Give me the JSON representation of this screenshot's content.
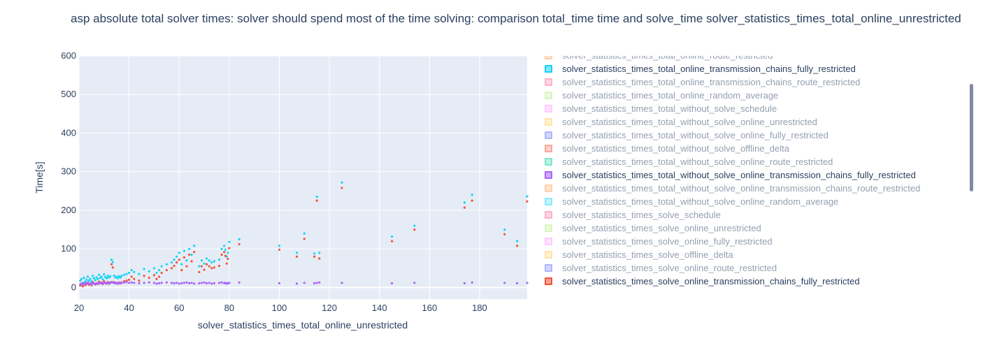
{
  "title": "asp absolute total solver times:  solver should spend most of the time solving: comparison total_time time and solve_time  solver_statistics_times_total_online_unrestricted",
  "chart_data": {
    "type": "scatter",
    "xlabel": "solver_statistics_times_total_online_unrestricted",
    "ylabel": "Time[s]",
    "xlim": [
      20,
      199
    ],
    "ylim": [
      -30,
      600
    ],
    "xticks": [
      20,
      40,
      60,
      80,
      100,
      120,
      140,
      160,
      180
    ],
    "yticks": [
      0,
      100,
      200,
      300,
      400,
      500,
      600
    ],
    "grid": true,
    "legend_placement": "right",
    "series": [
      {
        "name": "solver_statistics_times_total_online_transmission_chains_fully_restricted",
        "color": "#19d3f3",
        "x": [
          20.5,
          21,
          21.5,
          22,
          22.5,
          23,
          23.5,
          24,
          24.5,
          25,
          25.5,
          26,
          26.5,
          27,
          27.5,
          28,
          28.5,
          29,
          29.5,
          30,
          30.5,
          31,
          31.5,
          32,
          32.5,
          33,
          33.5,
          34,
          34.5,
          35,
          35.5,
          36,
          36.5,
          37,
          38,
          39,
          40,
          41,
          42,
          44,
          46,
          48,
          50,
          51,
          52,
          53,
          55,
          57,
          58,
          59,
          60,
          61,
          62,
          63,
          64,
          65,
          66,
          68,
          69,
          70,
          71,
          72,
          73,
          74,
          76,
          77,
          78,
          78.5,
          79,
          79.5,
          80,
          84,
          100,
          107,
          110,
          114,
          115,
          116,
          125,
          145,
          154,
          174,
          177,
          190,
          195,
          199
        ],
        "y": [
          18,
          22,
          12,
          25,
          15,
          20,
          28,
          18,
          22,
          16,
          30,
          24,
          19,
          26,
          22,
          33,
          25,
          28,
          21,
          34,
          27,
          24,
          30,
          26,
          29,
          72,
          66,
          31,
          26,
          28,
          24,
          29,
          26,
          30,
          33,
          35,
          38,
          45,
          40,
          35,
          48,
          42,
          50,
          38,
          45,
          55,
          60,
          65,
          72,
          80,
          90,
          60,
          95,
          70,
          100,
          85,
          108,
          55,
          70,
          62,
          75,
          70,
          65,
          68,
          72,
          100,
          108,
          98,
          80,
          90,
          118,
          125,
          108,
          90,
          140,
          88,
          235,
          90,
          272,
          132,
          160,
          220,
          240,
          150,
          120,
          236
        ]
      },
      {
        "name": "solver_statistics_times_solve_online_transmission_chains_fully_restricted",
        "color": "#ef553b",
        "x": [
          20.5,
          21,
          21.5,
          22,
          22.5,
          23,
          23.5,
          24,
          24.5,
          25,
          25.5,
          26,
          26.5,
          27,
          27.5,
          28,
          28.5,
          29,
          29.5,
          30,
          30.5,
          31,
          31.5,
          32,
          32.5,
          33,
          33.5,
          34,
          34.5,
          35,
          35.5,
          36,
          36.5,
          37,
          38,
          39,
          40,
          41,
          42,
          44,
          46,
          48,
          50,
          51,
          52,
          53,
          55,
          57,
          58,
          59,
          60,
          61,
          62,
          63,
          64,
          65,
          66,
          68,
          69,
          70,
          71,
          72,
          73,
          74,
          76,
          77,
          78,
          78.5,
          79,
          79.5,
          80,
          84,
          100,
          107,
          110,
          114,
          115,
          116,
          125,
          145,
          154,
          174,
          177,
          190,
          195,
          199
        ],
        "y": [
          5,
          8,
          3,
          10,
          6,
          9,
          12,
          7,
          10,
          6,
          14,
          10,
          8,
          11,
          9,
          15,
          11,
          13,
          9,
          16,
          12,
          10,
          14,
          11,
          13,
          60,
          52,
          14,
          11,
          12,
          10,
          13,
          11,
          13,
          16,
          18,
          20,
          28,
          22,
          18,
          30,
          25,
          32,
          22,
          28,
          38,
          45,
          50,
          56,
          65,
          72,
          45,
          78,
          55,
          85,
          68,
          92,
          40,
          55,
          46,
          60,
          55,
          50,
          52,
          56,
          85,
          92,
          82,
          62,
          74,
          102,
          112,
          98,
          80,
          126,
          80,
          225,
          75,
          258,
          120,
          150,
          207,
          225,
          138,
          108,
          223
        ]
      },
      {
        "name": "solver_statistics_times_total_without_solve_online_transmission_chains_fully_restricted",
        "color": "#ab63fa",
        "x": [
          20.5,
          21,
          21.5,
          22,
          22.5,
          23,
          23.5,
          24,
          24.5,
          25,
          25.5,
          26,
          26.5,
          27,
          27.5,
          28,
          28.5,
          29,
          29.5,
          30,
          30.5,
          31,
          31.5,
          32,
          32.5,
          33,
          33.5,
          34,
          34.5,
          35,
          35.5,
          36,
          36.5,
          37,
          38,
          39,
          40,
          41,
          42,
          44,
          46,
          48,
          50,
          51,
          52,
          53,
          55,
          57,
          58,
          59,
          60,
          61,
          62,
          63,
          64,
          65,
          66,
          68,
          69,
          70,
          71,
          72,
          73,
          74,
          76,
          77,
          78,
          78.5,
          79,
          79.5,
          80,
          84,
          100,
          107,
          110,
          114,
          115,
          116,
          125,
          145,
          154,
          174,
          177,
          190,
          195,
          199
        ],
        "y": [
          8,
          10,
          6,
          12,
          9,
          11,
          13,
          9,
          11,
          8,
          12,
          10,
          9,
          11,
          10,
          12,
          11,
          12,
          10,
          13,
          12,
          11,
          12,
          10,
          12,
          14,
          13,
          12,
          11,
          12,
          10,
          12,
          11,
          12,
          13,
          14,
          12,
          13,
          12,
          11,
          12,
          13,
          12,
          10,
          11,
          12,
          13,
          12,
          11,
          12,
          10,
          11,
          12,
          13,
          11,
          12,
          10,
          11,
          12,
          13,
          11,
          12,
          10,
          11,
          12,
          13,
          11,
          12,
          10,
          11,
          12,
          13,
          11,
          10,
          12,
          11,
          12,
          13,
          12,
          11,
          12,
          11,
          13,
          12,
          11,
          12
        ]
      }
    ]
  },
  "legend": {
    "items": [
      {
        "label": "solver_statistics_times_total_online_route_restricted",
        "color": "#ffa15a",
        "active": false
      },
      {
        "label": "solver_statistics_times_total_online_transmission_chains_fully_restricted",
        "color": "#19d3f3",
        "active": true
      },
      {
        "label": "solver_statistics_times_total_online_transmission_chains_route_restricted",
        "color": "#ff6692",
        "active": false
      },
      {
        "label": "solver_statistics_times_total_online_random_average",
        "color": "#b6e880",
        "active": false
      },
      {
        "label": "solver_statistics_times_total_without_solve_schedule",
        "color": "#ff97ff",
        "active": false
      },
      {
        "label": "solver_statistics_times_total_without_solve_online_unrestricted",
        "color": "#fecb52",
        "active": false
      },
      {
        "label": "solver_statistics_times_total_without_solve_online_fully_restricted",
        "color": "#636efa",
        "active": false
      },
      {
        "label": "solver_statistics_times_total_without_solve_offline_delta",
        "color": "#ef553b",
        "active": false
      },
      {
        "label": "solver_statistics_times_total_without_solve_online_route_restricted",
        "color": "#00cc96",
        "active": false
      },
      {
        "label": "solver_statistics_times_total_without_solve_online_transmission_chains_fully_restricted",
        "color": "#ab63fa",
        "active": true
      },
      {
        "label": "solver_statistics_times_total_without_solve_online_transmission_chains_route_restricted",
        "color": "#ffa15a",
        "active": false
      },
      {
        "label": "solver_statistics_times_total_without_solve_online_random_average",
        "color": "#19d3f3",
        "active": false
      },
      {
        "label": "solver_statistics_times_solve_schedule",
        "color": "#ff6692",
        "active": false
      },
      {
        "label": "solver_statistics_times_solve_online_unrestricted",
        "color": "#b6e880",
        "active": false
      },
      {
        "label": "solver_statistics_times_solve_online_fully_restricted",
        "color": "#ff97ff",
        "active": false
      },
      {
        "label": "solver_statistics_times_solve_offline_delta",
        "color": "#fecb52",
        "active": false
      },
      {
        "label": "solver_statistics_times_solve_online_route_restricted",
        "color": "#636efa",
        "active": false
      },
      {
        "label": "solver_statistics_times_solve_online_transmission_chains_fully_restricted",
        "color": "#ef553b",
        "active": true
      }
    ]
  }
}
